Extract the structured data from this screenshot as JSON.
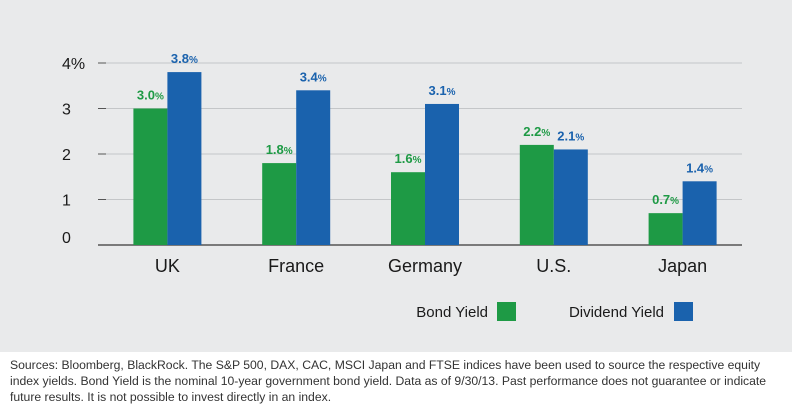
{
  "chart_data": {
    "type": "bar",
    "categories": [
      "UK",
      "France",
      "Germany",
      "U.S.",
      "Japan"
    ],
    "series": [
      {
        "name": "Bond Yield",
        "values": [
          3.0,
          1.8,
          1.6,
          2.2,
          0.7
        ],
        "labels": [
          "3.0",
          "1.8",
          "1.6",
          "2.2",
          "0.7"
        ],
        "color": "#1e9a45"
      },
      {
        "name": "Dividend Yield",
        "values": [
          3.8,
          3.4,
          3.1,
          2.1,
          1.4
        ],
        "labels": [
          "3.8",
          "3.4",
          "3.1",
          "2.1",
          "1.4"
        ],
        "color": "#1a62ad"
      }
    ],
    "yticks": [
      "0",
      "1",
      "2",
      "3",
      "4%"
    ],
    "ylim": [
      0,
      4
    ],
    "grid": true,
    "legend_position": "bottom-right",
    "label_suffix": "%"
  },
  "footnote": "Sources: Bloomberg, BlackRock. The S&P 500, DAX, CAC, MSCI Japan and FTSE indices have been used to source the respective equity index yields. Bond Yield is the nominal 10-year government bond yield. Data as of 9/30/13. Past performance does not guarantee or indicate future results. It is not possible to invest directly in an index.",
  "colors": {
    "panel_bg": "#e9eaeb",
    "bond": "#1e9a45",
    "dividend": "#1a62ad"
  }
}
